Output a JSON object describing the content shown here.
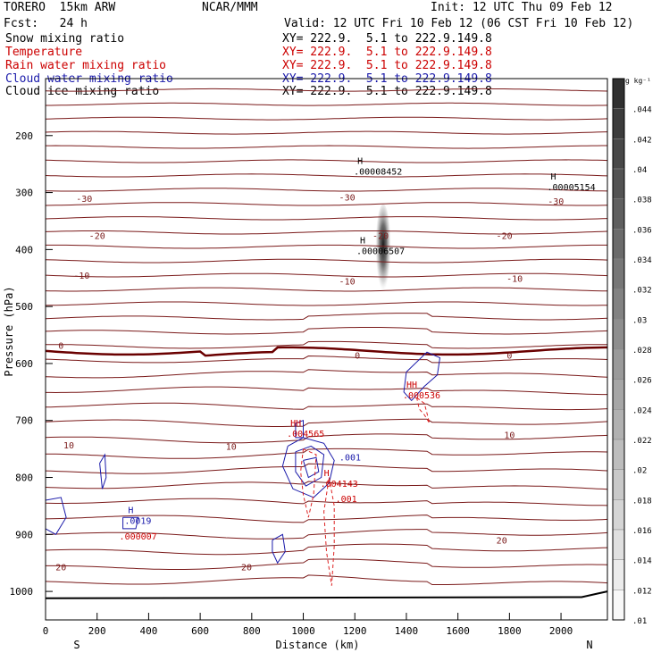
{
  "header": {
    "model": "TORERO  15km ARW",
    "center": "NCAR/MMM",
    "init": "Init: 12 UTC Thu 09 Feb 12",
    "fcst": "Fcst:   24 h",
    "valid": "Valid: 12 UTC Fri 10 Feb 12 (06 CST Fri 10 Feb 12)"
  },
  "fields": [
    {
      "name": "Snow mixing ratio",
      "color": "#000000",
      "xy": "XY= 222.9.  5.1 to 222.9.149.8"
    },
    {
      "name": "Temperature",
      "color": "#cc0000",
      "xy": "XY= 222.9.  5.1 to 222.9.149.8"
    },
    {
      "name": "Rain water mixing ratio",
      "color": "#cc0000",
      "xy": "XY= 222.9.  5.1 to 222.9.149.8"
    },
    {
      "name": "Cloud water mixing ratio",
      "color": "#1a1aaa",
      "xy": "XY= 222.9.  5.1 to 222.9.149.8"
    },
    {
      "name": "Cloud ice mixing ratio",
      "color": "#000000",
      "xy": "XY= 222.9.  5.1 to 222.9.149.8"
    }
  ],
  "colors": {
    "temperature": "#7a1a1a",
    "freezing": "#6a0000",
    "cloud_water": "#1a1aaa",
    "rain": "#dd2222",
    "terrain": "#000000"
  },
  "chart_data": {
    "type": "heatmap",
    "xlabel": "Distance (km)",
    "ylabel": "Pressure (hPa)",
    "xlim": [
      0,
      2180
    ],
    "ylim": [
      100,
      1050
    ],
    "x_ticks": [
      0,
      200,
      400,
      600,
      800,
      1000,
      1200,
      1400,
      1600,
      1800,
      2000
    ],
    "y_ticks": [
      200,
      300,
      400,
      500,
      600,
      700,
      800,
      900,
      1000
    ],
    "x_end_labels": {
      "left": "S",
      "right": "N"
    },
    "colorbar": {
      "unit": "g kg⁻¹",
      "ticks": [
        ".01",
        ".012",
        ".014",
        ".016",
        ".018",
        ".02",
        ".022",
        ".024",
        ".026",
        ".028",
        ".03",
        ".032",
        ".034",
        ".036",
        ".038",
        ".04",
        ".042",
        ".044"
      ]
    },
    "snow_shading": {
      "x_center": 1310,
      "p_center": 400,
      "x_halfwidth": 30,
      "p_top": 330,
      "p_bottom": 490,
      "max": 0.046
    },
    "temperature_levels": [
      {
        "label": "-30",
        "x": 150,
        "p": 310
      },
      {
        "label": "-30",
        "x": 1170,
        "p": 308
      },
      {
        "label": "-30",
        "x": 1980,
        "p": 315
      },
      {
        "label": "-20",
        "x": 200,
        "p": 375
      },
      {
        "label": "-20",
        "x": 1300,
        "p": 375
      },
      {
        "label": "-20",
        "x": 1780,
        "p": 375
      },
      {
        "label": "-10",
        "x": 140,
        "p": 445
      },
      {
        "label": "-10",
        "x": 1170,
        "p": 455
      },
      {
        "label": "-10",
        "x": 1820,
        "p": 450
      },
      {
        "label": "0",
        "x": 60,
        "p": 568
      },
      {
        "label": "0",
        "x": 1210,
        "p": 585
      },
      {
        "label": "0",
        "x": 1800,
        "p": 585
      },
      {
        "label": "10",
        "x": 90,
        "p": 743
      },
      {
        "label": "10",
        "x": 720,
        "p": 745
      },
      {
        "label": "10",
        "x": 1800,
        "p": 725
      },
      {
        "label": "20",
        "x": 60,
        "p": 957
      },
      {
        "label": "20",
        "x": 780,
        "p": 957
      },
      {
        "label": "20",
        "x": 1770,
        "p": 910
      }
    ],
    "maxima": [
      {
        "text": "H",
        "value": ".00008452",
        "x": 1210,
        "p": 262,
        "color": "#000000"
      },
      {
        "text": "H",
        "value": ".00005154",
        "x": 1960,
        "p": 290,
        "color": "#000000"
      },
      {
        "text": "H",
        "value": ".00006507",
        "x": 1220,
        "p": 402,
        "color": "#000000"
      },
      {
        "text": "HH",
        "value": ".000536",
        "x": 1400,
        "p": 655,
        "color": "#cc0000"
      },
      {
        "text": "HH",
        "value": ".004565",
        "x": 950,
        "p": 722,
        "color": "#cc0000"
      },
      {
        "text": "H",
        "value": ".004143",
        "x": 1080,
        "p": 810,
        "color": "#cc0000"
      },
      {
        "text": "H",
        "value": ".0019",
        "x": 320,
        "p": 875,
        "color": "#1a1aaa"
      },
      {
        "text": "",
        "value": ".000007",
        "x": 300,
        "p": 903,
        "color": "#cc0000"
      }
    ],
    "contour_labels": [
      {
        "text": ".001",
        "x": 1140,
        "p": 770,
        "color": "#1a1aaa"
      },
      {
        "text": ".001",
        "x": 1125,
        "p": 843,
        "color": "#cc0000"
      }
    ]
  }
}
